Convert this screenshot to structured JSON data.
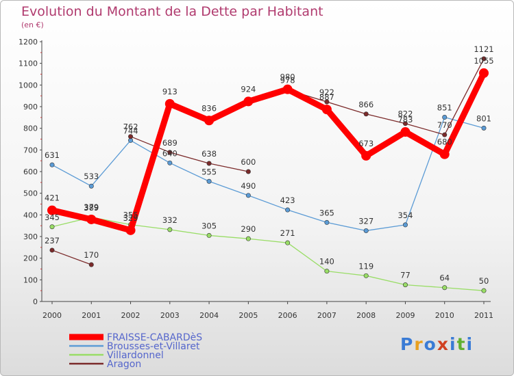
{
  "title": "Evolution du Montant de la Dette par Habitant",
  "subtitle": "(en €)",
  "logo": "Proxiti",
  "chart_data": {
    "type": "line",
    "title": "Evolution du Montant de la Dette par Habitant",
    "subtitle": "(en €)",
    "x": [
      "2000",
      "2001",
      "2002",
      "2003",
      "2004",
      "2005",
      "2006",
      "2007",
      "2008",
      "2009",
      "2010",
      "2011"
    ],
    "ylim": [
      0,
      1200
    ],
    "yticks": [
      0,
      100,
      200,
      300,
      400,
      500,
      600,
      700,
      800,
      900,
      1000,
      1100,
      1200
    ],
    "grid": false,
    "legend_position": "bottom-left",
    "series": [
      {
        "name": "FRAISSE-CABARDèS",
        "color": "#ff0000",
        "values": [
          421,
          379,
          329,
          913,
          836,
          924,
          980,
          887,
          673,
          783,
          680,
          1055
        ]
      },
      {
        "name": "Brousses-et-Villaret",
        "color": "#5b9bd5",
        "values": [
          631,
          533,
          744,
          640,
          555,
          490,
          423,
          365,
          327,
          354,
          851,
          801
        ]
      },
      {
        "name": "Villardonnel",
        "color": "#99dd66",
        "values": [
          345,
          389,
          355,
          332,
          305,
          290,
          271,
          140,
          119,
          77,
          64,
          50
        ]
      },
      {
        "name": "Aragon",
        "color": "#7b2a2a",
        "values": [
          237,
          170,
          762,
          689,
          638,
          600,
          978,
          922,
          866,
          822,
          770,
          1121
        ]
      }
    ],
    "labels": [
      {
        "series": 0,
        "text": [
          "421",
          "379",
          "329",
          "913",
          "836",
          "924",
          "980",
          "887",
          "673",
          "783",
          "680",
          "1055"
        ]
      },
      {
        "series": 1,
        "text": [
          "631",
          "533",
          "744",
          "640",
          "555",
          "490",
          "423",
          "365",
          "327",
          "354",
          "851",
          "801"
        ]
      },
      {
        "series": 2,
        "text": [
          "345",
          "389",
          "355",
          "332",
          "305",
          "290",
          "271",
          "140",
          "119",
          "77",
          "64",
          "50"
        ]
      },
      {
        "series": 3,
        "text": [
          "237",
          "170",
          "762",
          "689",
          "638",
          "600",
          "978",
          "922",
          "866",
          "822",
          "770",
          "1121"
        ]
      }
    ]
  }
}
